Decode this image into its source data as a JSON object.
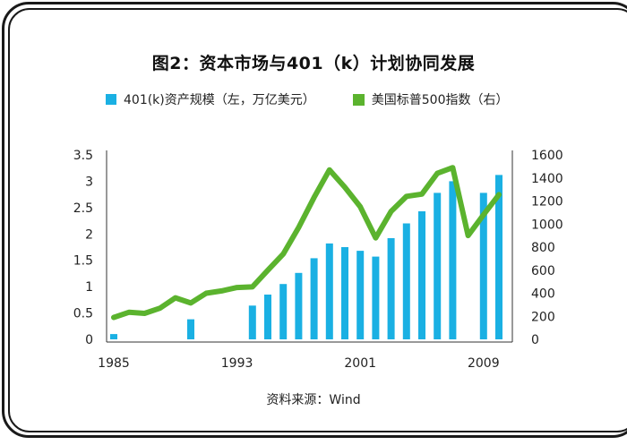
{
  "chart_data": {
    "type": "bar+line",
    "title": "图2：资本市场与401（k）计划协同发展",
    "source": "资料来源：Wind",
    "x_tick_labels": [
      "1985",
      "1993",
      "2001",
      "2009"
    ],
    "left_axis": {
      "label": "401(k)资产规模（左，万亿美元）",
      "min": 0,
      "max": 3.5,
      "ticks": [
        "0",
        "0.5",
        "1",
        "1.5",
        "2",
        "2.5",
        "3",
        "3.5"
      ]
    },
    "right_axis": {
      "label": "美国标普500指数（右）",
      "min": 0,
      "max": 1600,
      "ticks": [
        "0",
        "200",
        "400",
        "600",
        "800",
        "1000",
        "1200",
        "1400",
        "1600"
      ]
    },
    "series": [
      {
        "name": "401(k)资产规模（左，万亿美元）",
        "type": "bar",
        "color": "#1ab0e3",
        "axis": "left",
        "x": [
          1985,
          1990,
          1994,
          1995,
          1996,
          1997,
          1998,
          1999,
          2000,
          2001,
          2002,
          2003,
          2004,
          2005,
          2006,
          2007,
          2009,
          2010
        ],
        "values": [
          0.1,
          0.38,
          0.64,
          0.85,
          1.05,
          1.26,
          1.54,
          1.82,
          1.75,
          1.68,
          1.57,
          1.92,
          2.2,
          2.43,
          2.78,
          3.0,
          2.78,
          3.12
        ]
      },
      {
        "name": "美国标普500指数（右）",
        "type": "line",
        "color": "#5bb32e",
        "axis": "right",
        "x": [
          1985,
          1986,
          1987,
          1988,
          1989,
          1990,
          1991,
          1992,
          1993,
          1994,
          1995,
          1996,
          1997,
          1998,
          1999,
          2000,
          2001,
          2002,
          2003,
          2004,
          2005,
          2006,
          2007,
          2008,
          2009,
          2010
        ],
        "values": [
          190,
          235,
          225,
          270,
          360,
          315,
          400,
          420,
          450,
          455,
          600,
          740,
          970,
          1230,
          1470,
          1320,
          1150,
          880,
          1110,
          1240,
          1260,
          1440,
          1490,
          900,
          1080,
          1255
        ]
      }
    ]
  }
}
